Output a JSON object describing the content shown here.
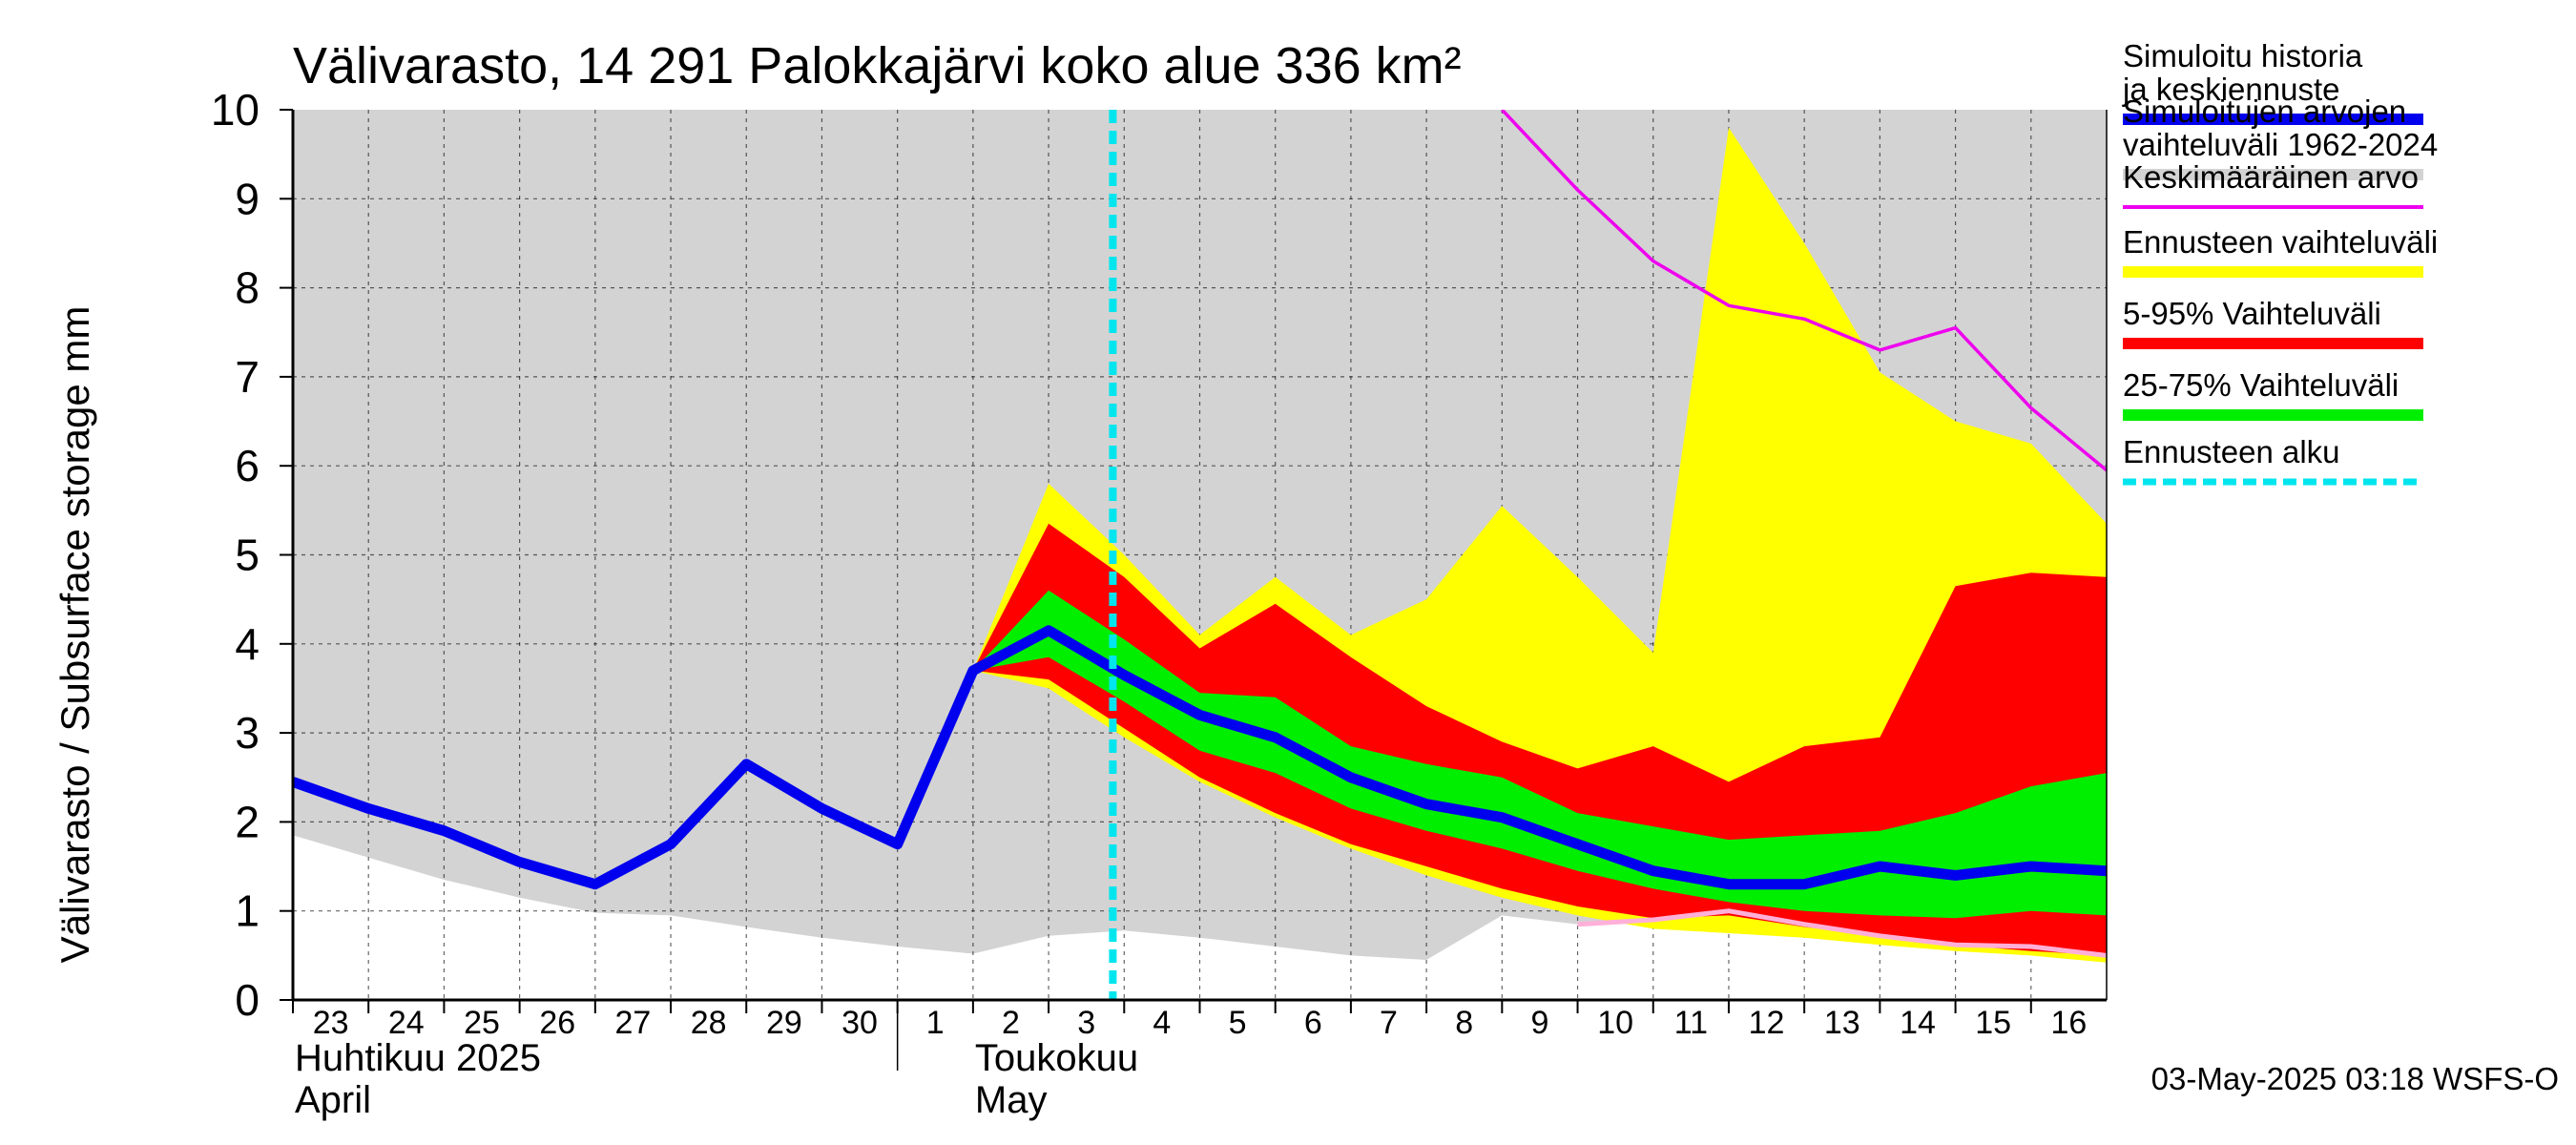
{
  "chart_data": {
    "type": "area",
    "title": "Välivarasto, 14 291 Palokkajärvi koko alue 336 km²",
    "ylabel": "Välivarasto / Subsurface storage  mm",
    "ylim": [
      0,
      10
    ],
    "yticks": [
      "0",
      "1",
      "2",
      "3",
      "4",
      "5",
      "6",
      "7",
      "8",
      "9",
      "10"
    ],
    "grid": true,
    "legend_position": "right",
    "x_day_labels": [
      "23",
      "24",
      "25",
      "26",
      "27",
      "28",
      "29",
      "30",
      "1",
      "2",
      "3",
      "4",
      "5",
      "6",
      "7",
      "8",
      "9",
      "10",
      "11",
      "12",
      "13",
      "14",
      "15",
      "16"
    ],
    "month_labels": [
      {
        "fi": "Huhtikuu  2025",
        "en": "April"
      },
      {
        "fi": "Toukokuu",
        "en": "May"
      }
    ],
    "forecast_start_day": 10.85,
    "history_range": {
      "name": "Simuloitujen arvojen vaihteluväli 1962-2024",
      "color": "#d3d3d3",
      "x": [
        0,
        1,
        2,
        3,
        4,
        5,
        6,
        7,
        8,
        9,
        10,
        11,
        12,
        13,
        14,
        15,
        16,
        17,
        18,
        19,
        20,
        21,
        22,
        23,
        24
      ],
      "upper": [
        10,
        10,
        10,
        10,
        10,
        10,
        10,
        10,
        10,
        10,
        10,
        10,
        10,
        10,
        10,
        10,
        10,
        10,
        10,
        10,
        10,
        10,
        10,
        10,
        10
      ],
      "lower": [
        1.85,
        1.6,
        1.35,
        1.15,
        0.98,
        0.95,
        0.82,
        0.7,
        0.6,
        0.52,
        0.72,
        0.78,
        0.7,
        0.6,
        0.5,
        0.45,
        0.95,
        0.85,
        0.9,
        1.05,
        0.85,
        0.7,
        0.6,
        0.55,
        0.5
      ]
    },
    "forecast_bands": {
      "x": [
        9,
        10,
        11,
        12,
        13,
        14,
        15,
        16,
        17,
        18,
        19,
        20,
        21,
        22,
        23,
        24
      ],
      "full_range": {
        "name": "Ennusteen vaihteluväli",
        "color": "#ffff00",
        "upper": [
          3.7,
          5.8,
          5.0,
          4.1,
          4.75,
          4.1,
          4.5,
          5.55,
          4.75,
          3.9,
          9.8,
          8.5,
          7.05,
          6.5,
          6.25,
          5.35
        ],
        "lower": [
          3.7,
          3.5,
          2.95,
          2.45,
          2.05,
          1.7,
          1.4,
          1.15,
          0.95,
          0.8,
          0.75,
          0.7,
          0.62,
          0.55,
          0.5,
          0.42
        ]
      },
      "p5_95": {
        "name": "5-95% Vaihteluväli",
        "color": "#ff0000",
        "upper": [
          3.7,
          5.35,
          4.75,
          3.95,
          4.45,
          3.85,
          3.3,
          2.9,
          2.6,
          2.85,
          2.45,
          2.85,
          2.95,
          4.65,
          4.8,
          4.75
        ],
        "lower": [
          3.7,
          3.6,
          3.05,
          2.5,
          2.1,
          1.75,
          1.5,
          1.25,
          1.05,
          0.92,
          0.95,
          0.82,
          0.72,
          0.62,
          0.55,
          0.5
        ]
      },
      "p25_75": {
        "name": "25-75% Vaihteluväli",
        "color": "#00ee00",
        "upper": [
          3.7,
          4.6,
          4.05,
          3.45,
          3.4,
          2.85,
          2.65,
          2.5,
          2.1,
          1.95,
          1.8,
          1.85,
          1.9,
          2.1,
          2.4,
          2.55
        ],
        "lower": [
          3.7,
          3.85,
          3.35,
          2.8,
          2.55,
          2.15,
          1.9,
          1.7,
          1.45,
          1.25,
          1.1,
          1.0,
          0.95,
          0.92,
          1.0,
          0.95
        ]
      }
    },
    "series": [
      {
        "name": "Simuloitu historia ja keskiennuste",
        "color": "#0000ee",
        "x": [
          0,
          1,
          2,
          3,
          4,
          5,
          6,
          7,
          8,
          9,
          10,
          11,
          12,
          13,
          14,
          15,
          16,
          17,
          18,
          19,
          20,
          21,
          22,
          23,
          24
        ],
        "values": [
          2.45,
          2.15,
          1.9,
          1.55,
          1.3,
          1.75,
          2.65,
          2.15,
          1.75,
          3.7,
          4.15,
          3.65,
          3.2,
          2.95,
          2.5,
          2.2,
          2.05,
          1.75,
          1.45,
          1.3,
          1.3,
          1.5,
          1.4,
          1.5,
          1.45
        ]
      },
      {
        "name": "Keskimääräinen arvo",
        "color": "#ee00ee",
        "x": [
          16,
          17,
          18,
          19,
          20,
          21,
          22,
          23,
          24
        ],
        "values": [
          10.0,
          9.1,
          8.3,
          7.8,
          7.65,
          7.3,
          7.55,
          6.65,
          5.95
        ]
      },
      {
        "name": "",
        "color": "#ffb0d8",
        "x": [
          17,
          18,
          19,
          20,
          21,
          22,
          23,
          24
        ],
        "values": [
          0.85,
          0.9,
          1.0,
          0.85,
          0.72,
          0.62,
          0.6,
          0.5
        ]
      }
    ],
    "legend": [
      {
        "label": "Simuloitu historia ja keskiennuste",
        "color": "#0000ee"
      },
      {
        "label": "Simuloitujen arvojen vaihteluväli 1962-2024",
        "color": "#d3d3d3"
      },
      {
        "label": "Keskimääräinen arvo",
        "color": "#ee00ee"
      },
      {
        "label": "Ennusteen vaihteluväli",
        "color": "#ffff00"
      },
      {
        "label": "5-95% Vaihteluväli",
        "color": "#ff0000"
      },
      {
        "label": "25-75% Vaihteluväli",
        "color": "#00ee00"
      },
      {
        "label": "Ennusteen alku",
        "color": "#00e5ee"
      }
    ],
    "footer": "03-May-2025 03:18 WSFS-O"
  }
}
